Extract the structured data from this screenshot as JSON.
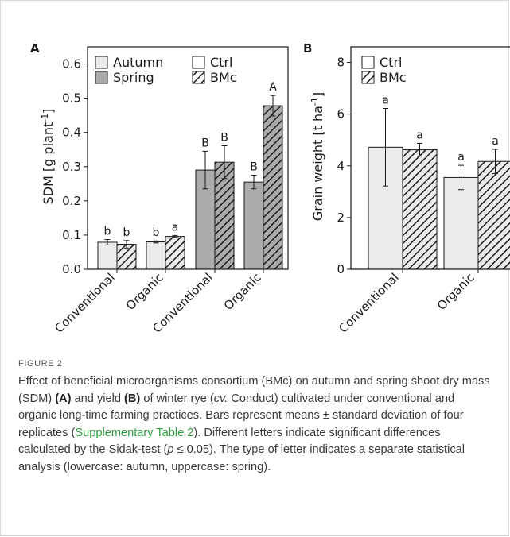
{
  "colors": {
    "autumn": "#ebebeb",
    "spring": "#ababab",
    "axis": "#1a1a1a",
    "link": "#2e9e3e"
  },
  "chart_data": [
    {
      "panel": "A",
      "type": "bar",
      "ylabel_main": "SDM [g plant",
      "ylabel_sup": "-1",
      "ylabel_end": "]",
      "ylim": [
        0,
        0.65
      ],
      "yticks": [
        "0.0",
        "0.1",
        "0.2",
        "0.3",
        "0.4",
        "0.5",
        "0.6"
      ],
      "categories": [
        "Conventional",
        "Organic",
        "Conventional",
        "Organic"
      ],
      "legend_season": [
        "Autumn",
        "Spring"
      ],
      "legend_treatment": [
        "Ctrl",
        "BMc"
      ],
      "groups": [
        {
          "category": "Conventional",
          "season": "Autumn",
          "ctrl": 0.079,
          "ctrl_sd": 0.008,
          "ctrl_letter": "b",
          "bmc": 0.073,
          "bmc_sd": 0.011,
          "bmc_letter": "b"
        },
        {
          "category": "Organic",
          "season": "Autumn",
          "ctrl": 0.08,
          "ctrl_sd": 0.003,
          "ctrl_letter": "b",
          "bmc": 0.096,
          "bmc_sd": 0.003,
          "bmc_letter": "a"
        },
        {
          "category": "Conventional",
          "season": "Spring",
          "ctrl": 0.29,
          "ctrl_sd": 0.055,
          "ctrl_letter": "B",
          "bmc": 0.313,
          "bmc_sd": 0.048,
          "bmc_letter": "B"
        },
        {
          "category": "Organic",
          "season": "Spring",
          "ctrl": 0.255,
          "ctrl_sd": 0.02,
          "ctrl_letter": "B",
          "bmc": 0.478,
          "bmc_sd": 0.03,
          "bmc_letter": "A"
        }
      ]
    },
    {
      "panel": "B",
      "type": "bar",
      "ylabel_main": "Grain weight [t ha",
      "ylabel_sup": "-1",
      "ylabel_end": "]",
      "ylim": [
        0,
        8.6
      ],
      "yticks": [
        "0",
        "2",
        "4",
        "6",
        "8"
      ],
      "categories": [
        "Conventional",
        "Organic"
      ],
      "legend_treatment": [
        "Ctrl",
        "BMc"
      ],
      "groups": [
        {
          "category": "Conventional",
          "season": "Autumn",
          "ctrl": 4.72,
          "ctrl_sd": 1.5,
          "ctrl_letter": "a",
          "bmc": 4.62,
          "bmc_sd": 0.25,
          "bmc_letter": "a"
        },
        {
          "category": "Organic",
          "season": "Autumn",
          "ctrl": 3.55,
          "ctrl_sd": 0.47,
          "ctrl_letter": "a",
          "bmc": 4.17,
          "bmc_sd": 0.47,
          "bmc_letter": "a"
        }
      ]
    }
  ],
  "figure": {
    "label": "FIGURE 2",
    "caption": {
      "p1": "Effect of beneficial microorganisms consortium (BMc) on autumn and spring shoot dry mass (SDM) ",
      "a_ref": "(A)",
      "p2": " and yield ",
      "b_ref": "(B)",
      "p3": " of winter rye (",
      "cv": "cv.",
      "p4": " Conduct) cultivated under conventional and organic long-time farming practices. Bars represent means ± standard deviation of four replicates (",
      "link": "Supplementary Table 2",
      "p5": "). Different letters indicate significant differences calculated by the Sidak-test (",
      "p_italic": "p",
      "p6": " ≤ 0.05). The type of letter indicates a separate statistical analysis (lowercase: autumn, uppercase: spring)."
    }
  }
}
